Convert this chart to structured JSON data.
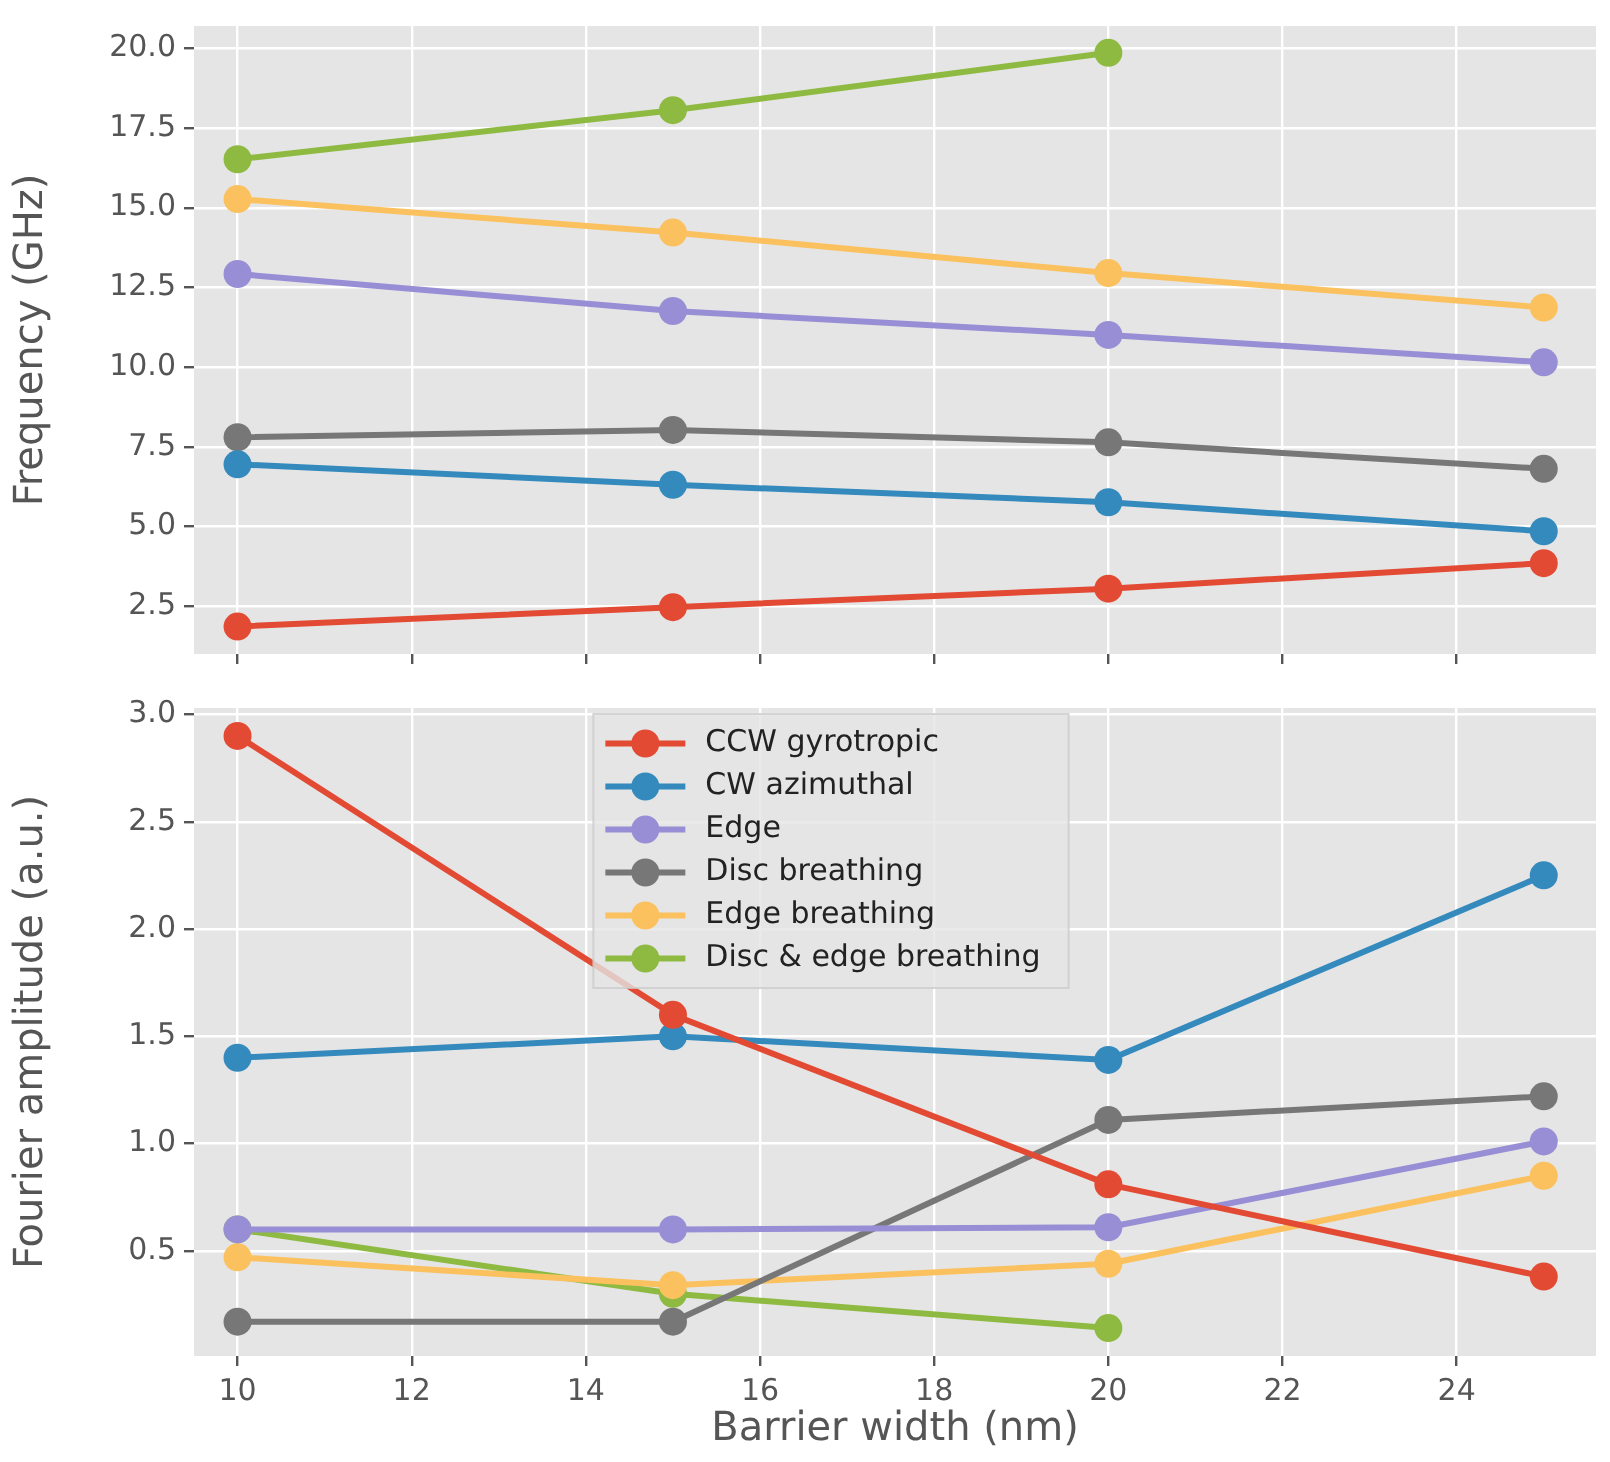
{
  "chart_data": [
    {
      "type": "line",
      "ylabel": "Frequency (GHz)",
      "x": [
        10,
        15,
        20,
        25
      ],
      "xlim": [
        9.5,
        25.6
      ],
      "xticks": [
        10,
        12,
        14,
        16,
        18,
        20,
        22,
        24
      ],
      "ylim": [
        1.0,
        20.7
      ],
      "yticks": [
        {
          "value": 2.5,
          "label": "2.5"
        },
        {
          "value": 5,
          "label": "5.0"
        },
        {
          "value": 7.5,
          "label": "7.5"
        },
        {
          "value": 10,
          "label": "10.0"
        },
        {
          "value": 12.5,
          "label": "12.5"
        },
        {
          "value": 15,
          "label": "15.0"
        },
        {
          "value": 17.5,
          "label": "17.5"
        },
        {
          "value": 20,
          "label": "20.0"
        }
      ],
      "tick_labels": "y",
      "grid": true,
      "marker": "circle",
      "legend": false,
      "series": [
        {
          "color": "#e24a33",
          "values": [
            1.86,
            2.47,
            3.05,
            3.85
          ]
        },
        {
          "color": "#348abd",
          "values": [
            6.95,
            6.31,
            5.76,
            4.85
          ]
        },
        {
          "color": "#988ed5",
          "values": [
            12.92,
            11.76,
            11.01,
            10.15
          ]
        },
        {
          "color": "#777777",
          "values": [
            7.8,
            8.03,
            7.64,
            6.81
          ]
        },
        {
          "color": "#fbc15e",
          "values": [
            15.27,
            14.22,
            12.95,
            11.87
          ]
        },
        {
          "color": "#8eba42",
          "values": [
            16.52,
            18.06,
            19.86,
            null
          ]
        }
      ]
    },
    {
      "type": "line",
      "xlabel": "Barrier width (nm)",
      "ylabel": "Fourier amplitude (a.u.)",
      "x": [
        10,
        15,
        20,
        25
      ],
      "xlim": [
        9.5,
        25.6
      ],
      "xticks": [
        10,
        12,
        14,
        16,
        18,
        20,
        22,
        24
      ],
      "ylim": [
        0.01,
        3.03
      ],
      "yticks": [
        {
          "value": 0.5,
          "label": "0.5"
        },
        {
          "value": 1,
          "label": "1.0"
        },
        {
          "value": 1.5,
          "label": "1.5"
        },
        {
          "value": 2,
          "label": "2.0"
        },
        {
          "value": 2.5,
          "label": "2.5"
        },
        {
          "value": 3,
          "label": "3.0"
        }
      ],
      "grid": true,
      "marker": "circle",
      "legend": "top",
      "series": [
        {
          "name": "CCW gyrotropic",
          "color": "#e24a33",
          "values": [
            2.9,
            1.6,
            0.81,
            0.38
          ]
        },
        {
          "name": "CW azimuthal",
          "color": "#348abd",
          "values": [
            1.4,
            1.5,
            1.39,
            2.25
          ]
        },
        {
          "name": "Edge",
          "color": "#988ed5",
          "values": [
            0.6,
            0.6,
            0.61,
            1.01
          ]
        },
        {
          "name": "Disc breathing",
          "color": "#777777",
          "values": [
            0.17,
            0.17,
            1.11,
            1.22
          ]
        },
        {
          "name": "Edge breathing",
          "color": "#fbc15e",
          "values": [
            0.47,
            0.34,
            0.44,
            0.85
          ]
        },
        {
          "name": "Disc & edge breathing",
          "color": "#8eba42",
          "values": [
            0.6,
            0.3,
            0.14,
            null
          ]
        }
      ]
    }
  ]
}
